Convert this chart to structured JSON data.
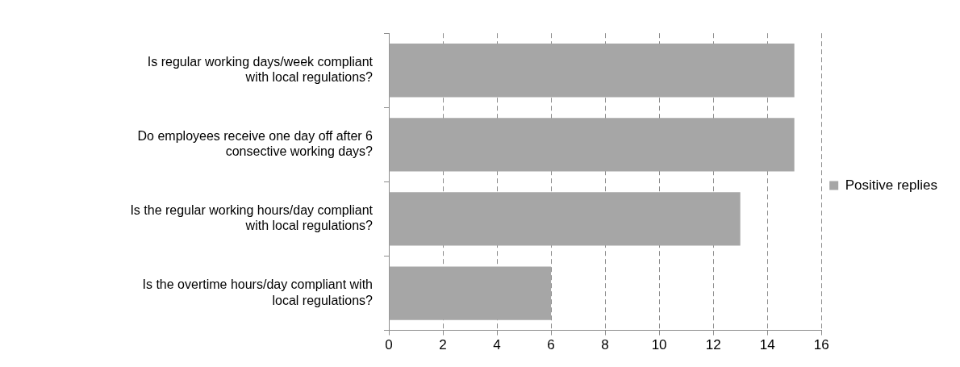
{
  "chart_data": {
    "type": "bar",
    "orientation": "horizontal",
    "categories": [
      "Is regular working days/week compliant with local regulations?",
      "Do employees receive one day off after 6 consective working days?",
      "Is the regular working hours/day compliant with local regulations?",
      "Is the overtime hours/day compliant with local regulations?"
    ],
    "series": [
      {
        "name": "Positive replies",
        "color": "#a6a6a6",
        "values": [
          15,
          15,
          13,
          6
        ]
      }
    ],
    "xlim": [
      0,
      16
    ],
    "xticks": [
      0,
      2,
      4,
      6,
      8,
      10,
      12,
      14,
      16
    ],
    "grid": "x",
    "legend": "right"
  }
}
